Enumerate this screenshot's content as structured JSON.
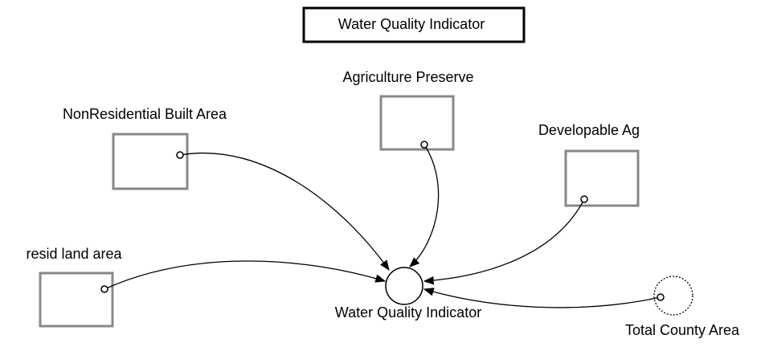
{
  "header": {
    "title": "Water Quality Indicator"
  },
  "nodes": [
    {
      "label": "NonResidential Built Area"
    },
    {
      "label": "Agriculture Preserve"
    },
    {
      "label": "Developable Ag"
    },
    {
      "label": "resid land area"
    },
    {
      "label": "Water Quality Indicator"
    },
    {
      "label": "Total County Area"
    }
  ]
}
